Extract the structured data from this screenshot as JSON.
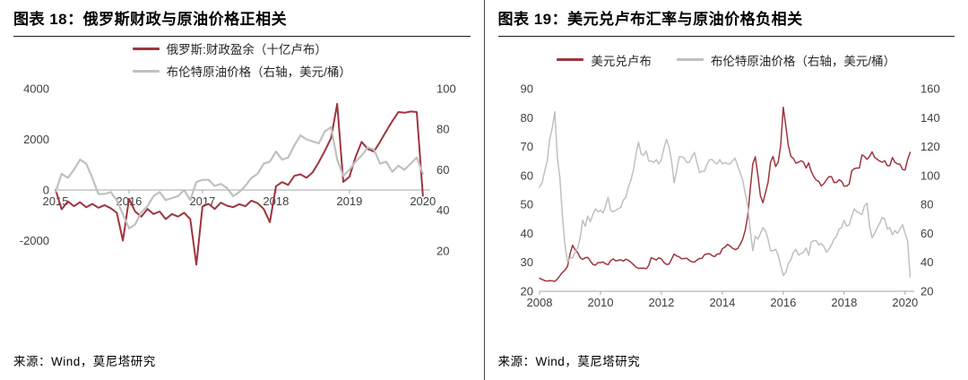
{
  "panels": [
    {
      "title": "图表 18：俄罗斯财政与原油价格正相关",
      "source": "来源：Wind，莫尼塔研究"
    },
    {
      "title": "图表 19：美元兑卢布汇率与原油价格负相关",
      "source": "来源：Wind，莫尼塔研究"
    }
  ],
  "colors": {
    "primary_red": "#9e353e",
    "series_gray": "#c0c0c0",
    "axis_line": "#a6a6a6",
    "axis_text": "#404040"
  },
  "chart_data": [
    {
      "type": "line",
      "title": "图表 18：俄罗斯财政与原油价格正相关",
      "x_range": [
        2015.0,
        2020.1
      ],
      "x_ticks": [
        2015,
        2016,
        2017,
        2018,
        2019,
        2020
      ],
      "x_axis_at": 0,
      "left_axis": {
        "min": -4000,
        "max": 4000,
        "ticks": [
          4000,
          2000,
          0,
          -2000
        ]
      },
      "right_axis": {
        "min": 0,
        "max": 100,
        "ticks": [
          100,
          80,
          60,
          40,
          20
        ]
      },
      "legend_layout": "column",
      "legend_position": "top",
      "grid": false,
      "series": [
        {
          "name": "俄罗斯:财政盈余（十亿卢布）",
          "axis": "left",
          "color": "#9e353e",
          "width": 2,
          "start": 2015.0,
          "step": 0.0833333,
          "values": [
            0,
            -760,
            -450,
            -640,
            -480,
            -680,
            -550,
            -700,
            -600,
            -720,
            -900,
            -2000,
            -350,
            -850,
            -1050,
            -750,
            -950,
            -850,
            -1150,
            -950,
            -1050,
            -900,
            -1150,
            -2950,
            -650,
            -550,
            -750,
            -500,
            -620,
            -680,
            -560,
            -640,
            -420,
            -520,
            -750,
            -1270,
            150,
            310,
            200,
            560,
            620,
            480,
            700,
            1100,
            1550,
            2050,
            3400,
            320,
            520,
            1300,
            1900,
            1620,
            1520,
            1900,
            2320,
            2720,
            3080,
            3050,
            3100,
            3080,
            -230
          ]
        },
        {
          "name": "布伦特原油价格（右轴，美元/桶）",
          "axis": "right",
          "color": "#c0c0c0",
          "width": 2.2,
          "start": 2015.0,
          "step": 0.0833333,
          "values": [
            49,
            58,
            56,
            60,
            65,
            63,
            56,
            48,
            48,
            49,
            45,
            38,
            31,
            33,
            39,
            42,
            47,
            49,
            45,
            46,
            47,
            50,
            45,
            54,
            55,
            55,
            52,
            53,
            51,
            47,
            49,
            52,
            56,
            58,
            63,
            64,
            69,
            65,
            66,
            72,
            77,
            75,
            74,
            73,
            79,
            81,
            65,
            57,
            60,
            64,
            67,
            71,
            70,
            63,
            64,
            59,
            62,
            60,
            63,
            66,
            58
          ]
        }
      ]
    },
    {
      "type": "line",
      "title": "图表 19：美元兑卢布汇率与原油价格负相关",
      "x_range": [
        2008.0,
        2020.3
      ],
      "x_ticks": [
        2008,
        2010,
        2012,
        2014,
        2016,
        2018,
        2020
      ],
      "left_axis": {
        "min": 20,
        "max": 90,
        "ticks": [
          90,
          80,
          70,
          60,
          50,
          40,
          30,
          20
        ]
      },
      "right_axis": {
        "min": 20,
        "max": 160,
        "ticks": [
          160,
          140,
          120,
          100,
          80,
          60,
          40,
          20
        ]
      },
      "legend_layout": "row",
      "legend_position": "top",
      "grid": false,
      "series": [
        {
          "name": "美元兑卢布",
          "axis": "left",
          "color": "#9e353e",
          "width": 1.5,
          "start": 2008.0,
          "step": 0.0833333,
          "values": [
            24.5,
            24.1,
            23.7,
            23.5,
            23.7,
            23.6,
            23.4,
            24.2,
            25.4,
            26.5,
            27.3,
            28.6,
            32.9,
            35.9,
            34.4,
            33.4,
            31.6,
            31.0,
            31.6,
            31.7,
            30.5,
            29.3,
            29.0,
            29.9,
            29.9,
            30.1,
            29.5,
            29.2,
            30.6,
            31.2,
            30.5,
            30.7,
            30.9,
            30.4,
            31.1,
            30.7,
            30.0,
            29.2,
            28.4,
            27.9,
            28.0,
            28.0,
            27.8,
            28.9,
            31.6,
            31.2,
            30.8,
            31.6,
            31.2,
            29.9,
            29.3,
            29.4,
            31.1,
            32.9,
            32.2,
            31.9,
            31.2,
            31.3,
            31.4,
            30.7,
            30.2,
            30.1,
            30.8,
            31.3,
            31.4,
            32.7,
            32.9,
            33.0,
            32.3,
            32.0,
            32.9,
            32.9,
            34.7,
            35.2,
            36.2,
            35.7,
            34.9,
            34.4,
            34.7,
            36.1,
            38.0,
            41.0,
            46.0,
            55.5,
            64.0,
            66.5,
            60.0,
            53.0,
            50.6,
            54.0,
            57.6,
            64.6,
            66.6,
            63.1,
            64.6,
            70.3,
            83.6,
            77.2,
            70.5,
            66.6,
            65.9,
            64.3,
            64.6,
            65.1,
            64.6,
            62.6,
            64.4,
            61.5,
            59.6,
            58.4,
            58.0,
            56.4,
            57.2,
            58.4,
            59.6,
            59.6,
            57.6,
            57.6,
            58.5,
            58.0,
            56.3,
            56.4,
            57.1,
            61.6,
            62.4,
            62.6,
            62.6,
            67.1,
            66.6,
            65.6,
            66.6,
            68.2,
            66.3,
            65.6,
            65.0,
            64.6,
            65.1,
            63.4,
            63.4,
            66.2,
            64.6,
            64.0,
            63.9,
            62.1,
            61.9,
            65.5,
            68.0
          ]
        },
        {
          "name": "布伦特原油价格（右轴，美元/桶）",
          "axis": "right",
          "color": "#c0c0c0",
          "width": 1.5,
          "start": 2008.0,
          "step": 0.0833333,
          "values": [
            92,
            95,
            103,
            110,
            125,
            133,
            144,
            113,
            98,
            72,
            52,
            40,
            43,
            43,
            47,
            50,
            57,
            69,
            65,
            72,
            68,
            73,
            77,
            75,
            76,
            74,
            79,
            85,
            76,
            75,
            76,
            77,
            78,
            83,
            85,
            92,
            97,
            104,
            115,
            123,
            115,
            114,
            117,
            110,
            110,
            109,
            111,
            108,
            111,
            119,
            125,
            120,
            110,
            95,
            103,
            113,
            113,
            112,
            109,
            109,
            113,
            116,
            109,
            102,
            103,
            103,
            108,
            111,
            111,
            109,
            108,
            111,
            108,
            109,
            108,
            108,
            110,
            112,
            107,
            102,
            97,
            88,
            79,
            62,
            48,
            58,
            56,
            60,
            64,
            62,
            56,
            48,
            48,
            49,
            45,
            38,
            31,
            33,
            39,
            42,
            47,
            49,
            45,
            46,
            47,
            50,
            45,
            54,
            55,
            55,
            52,
            53,
            51,
            47,
            49,
            52,
            56,
            58,
            63,
            64,
            69,
            65,
            66,
            72,
            77,
            75,
            74,
            73,
            79,
            81,
            65,
            57,
            60,
            64,
            67,
            71,
            70,
            63,
            64,
            59,
            62,
            60,
            63,
            66,
            60,
            55,
            30
          ]
        }
      ]
    }
  ]
}
